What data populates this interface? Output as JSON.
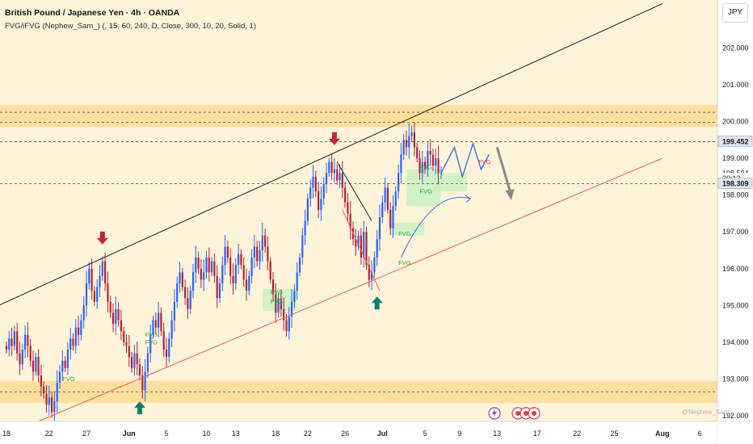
{
  "header": {
    "title": "British Pound / Japanese Yen · 4h · OANDA",
    "indicator": "FVG/iFVG (Nephew_Sam_) (, 15, 60, 240, D, Close, 300, 10, 20, Solid, 1)"
  },
  "currency_button": "JPY",
  "watermark": "@Nephew_Sam_",
  "colors": {
    "background": "#fff3d9",
    "zone": "#ffd88a",
    "up_candle": "#2962ff",
    "down_candle": "#b2243a",
    "fvg_box": "#c8f0c0",
    "fvg_text": "#22b24c",
    "support_line": "#f05a5a",
    "resistance_line": "#222222",
    "sell_arrow": "#c4263a",
    "buy_arrow": "#11806a"
  },
  "chart_data": {
    "type": "candlestick",
    "symbol": "GBPJPY",
    "timeframe": "4h",
    "ylim": [
      191.85,
      203.3
    ],
    "y_ticks": [
      "202.000",
      "201.000",
      "200.000",
      "199.000",
      "198.000",
      "197.000",
      "196.000",
      "195.000",
      "194.000",
      "193.000",
      "192.000"
    ],
    "y_tick_values": [
      202,
      201,
      200,
      199,
      198,
      197,
      196,
      195,
      194,
      193,
      192
    ],
    "x_ticks": [
      "18",
      "22",
      "27",
      "Jun",
      "5",
      "10",
      "13",
      "18",
      "22",
      "26",
      "Jul",
      "5",
      "9",
      "13",
      "17",
      "22",
      "25",
      "Aug",
      "6"
    ],
    "x_ticks_bold": [
      "Jun",
      "Jul",
      "Aug"
    ],
    "price_labels": [
      {
        "text": "199.452",
        "value": 199.452,
        "style": "dark"
      },
      {
        "text": "198.594",
        "value": 198.594,
        "style": "light"
      },
      {
        "text": "30:12",
        "value": 198.45,
        "style": "light"
      },
      {
        "text": "198.309",
        "value": 198.309,
        "style": "dark"
      }
    ],
    "dashed_levels": [
      200.25,
      199.98,
      199.452,
      198.309,
      192.65
    ],
    "zones": [
      {
        "low": 199.85,
        "high": 200.45
      },
      {
        "low": 192.35,
        "high": 192.95
      }
    ],
    "closes": [
      193.8,
      194.1,
      193.9,
      194.3,
      193.7,
      193.4,
      193.8,
      194.2,
      193.9,
      193.5,
      193.2,
      193.6,
      193.1,
      192.8,
      192.6,
      192.3,
      192.5,
      192.1,
      192.4,
      192.9,
      193.2,
      193.5,
      193.3,
      193.8,
      194.1,
      193.9,
      194.4,
      194.2,
      194.6,
      195.0,
      195.6,
      196.0,
      195.4,
      195.1,
      195.5,
      195.8,
      196.2,
      195.6,
      195.1,
      194.8,
      194.5,
      194.9,
      194.6,
      194.3,
      194.0,
      193.9,
      193.6,
      193.3,
      193.7,
      193.4,
      193.1,
      192.7,
      193.2,
      193.7,
      194.2,
      194.6,
      194.4,
      194.8,
      194.3,
      193.8,
      193.6,
      194.1,
      194.6,
      195.1,
      195.6,
      195.9,
      195.5,
      195.2,
      194.9,
      195.4,
      195.9,
      196.3,
      196.0,
      195.7,
      195.9,
      196.3,
      195.9,
      196.2,
      195.8,
      195.2,
      195.6,
      196.1,
      196.6,
      196.3,
      195.8,
      195.6,
      196.1,
      196.4,
      196.1,
      195.7,
      195.4,
      195.8,
      196.3,
      196.6,
      196.2,
      196.5,
      196.9,
      196.6,
      196.2,
      195.7,
      195.3,
      194.8,
      195.2,
      194.9,
      194.6,
      194.3,
      194.7,
      195.1,
      195.4,
      195.9,
      196.3,
      196.9,
      197.3,
      197.9,
      198.2,
      198.5,
      198.1,
      197.6,
      197.9,
      198.3,
      198.6,
      198.9,
      198.6,
      198.7,
      198.4,
      198.6,
      198.2,
      197.8,
      197.5,
      197.1,
      196.8,
      196.6,
      196.9,
      196.3,
      197.0,
      196.1,
      195.7,
      195.9,
      196.3,
      196.8,
      197.4,
      197.8,
      198.2,
      197.6,
      197.1,
      197.7,
      198.1,
      198.6,
      199.1,
      199.5,
      199.3,
      199.6,
      199.7,
      199.3,
      199.0,
      198.6,
      198.9,
      198.7,
      199.2,
      199.1,
      198.8,
      199.0,
      198.6,
      198.6
    ],
    "annotations": {
      "fvg_labels": [
        {
          "text": "FVG",
          "t": 21,
          "y": 192.95
        },
        {
          "text": "FVG",
          "t": 52,
          "y": 194.15
        },
        {
          "text": "FVG",
          "t": 52,
          "y": 193.95
        },
        {
          "text": "FVG",
          "t": 99,
          "y": 195.3
        },
        {
          "text": "FVG",
          "t": 99,
          "y": 195.05
        },
        {
          "text": "FVG",
          "t": 147,
          "y": 196.9
        },
        {
          "text": "FVG",
          "t": 147,
          "y": 196.1
        },
        {
          "text": "FVG",
          "t": 155,
          "y": 198.7
        },
        {
          "text": "FVG",
          "t": 155,
          "y": 198.05
        }
      ],
      "ifvg_label": {
        "text": "FVG",
        "t": 177,
        "y": 198.85
      },
      "sell_arrows": [
        {
          "t": 36,
          "y": 196.7
        },
        {
          "t": 123,
          "y": 199.4
        }
      ],
      "buy_arrows": [
        {
          "t": 50,
          "y": 192.35
        },
        {
          "t": 139,
          "y": 195.2
        }
      ],
      "resistance_line": {
        "start": {
          "t": -6,
          "y": 194.9
        },
        "end": {
          "t": 246,
          "y": 203.2
        }
      },
      "support_line": {
        "start": {
          "t": 12,
          "y": 191.85
        },
        "end": {
          "t": 246,
          "y": 199.0
        }
      },
      "breakdown_line": {
        "start": {
          "t": 124,
          "y": 198.9
        },
        "end": {
          "t": 137,
          "y": 197.3
        }
      },
      "wedge_line": {
        "start": {
          "t": 126,
          "y": 197.6
        },
        "end": {
          "t": 140,
          "y": 195.4
        }
      },
      "projection_zigzag": [
        {
          "t": 163,
          "y": 198.6
        },
        {
          "t": 168,
          "y": 199.3
        },
        {
          "t": 171,
          "y": 198.5
        },
        {
          "t": 175,
          "y": 199.4
        },
        {
          "t": 178,
          "y": 198.7
        },
        {
          "t": 181,
          "y": 199.1
        }
      ],
      "projection_curve": [
        {
          "t": 148,
          "y": 196.3
        },
        {
          "t": 160,
          "y": 198.2
        },
        {
          "t": 174,
          "y": 197.9
        }
      ],
      "down_arrow": {
        "start": {
          "t": 184,
          "y": 199.3
        },
        "end": {
          "t": 189,
          "y": 197.9
        }
      }
    }
  }
}
